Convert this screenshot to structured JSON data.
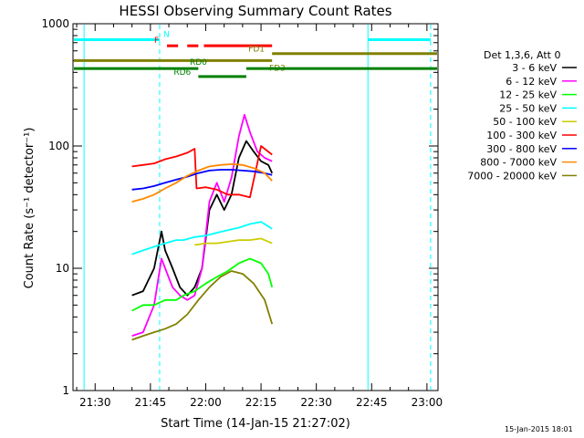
{
  "chart_data": {
    "type": "line",
    "title": "HESSI Observing Summary Count Rates",
    "xlabel": "Start Time (14-Jan-15 21:27:02)",
    "ylabel": "Count Rate (s⁻¹ detector⁻¹)",
    "yscale": "log",
    "ylim": [
      1,
      1000
    ],
    "xlim_minutes": [
      -3,
      96
    ],
    "x_ticks": [
      {
        "m": 3,
        "label": "21:30"
      },
      {
        "m": 18,
        "label": "21:45"
      },
      {
        "m": 33,
        "label": "22:00"
      },
      {
        "m": 48,
        "label": "22:15"
      },
      {
        "m": 63,
        "label": "22:30"
      },
      {
        "m": 78,
        "label": "22:45"
      },
      {
        "m": 93,
        "label": "23:00"
      }
    ],
    "y_ticks": [
      {
        "v": 1,
        "label": "1"
      },
      {
        "v": 10,
        "label": "10"
      },
      {
        "v": 100,
        "label": "100"
      },
      {
        "v": 1000,
        "label": "1000"
      }
    ],
    "legend_title": "Det 1,3,6, Att 0",
    "legend_placement": "right",
    "series": [
      {
        "name": "3 - 6 keV",
        "color": "#000000",
        "points": [
          [
            13,
            6
          ],
          [
            16,
            6.5
          ],
          [
            19,
            10
          ],
          [
            21,
            20
          ],
          [
            22,
            14
          ],
          [
            24,
            10
          ],
          [
            26,
            7
          ],
          [
            28,
            6
          ],
          [
            30,
            7
          ],
          [
            32,
            10
          ],
          [
            34,
            30
          ],
          [
            36,
            40
          ],
          [
            38,
            30
          ],
          [
            40,
            40
          ],
          [
            42,
            80
          ],
          [
            44,
            110
          ],
          [
            46,
            90
          ],
          [
            48,
            75
          ],
          [
            50,
            70
          ],
          [
            51,
            60
          ]
        ]
      },
      {
        "name": "6 - 12 keV",
        "color": "#ff00ff",
        "points": [
          [
            13,
            2.8
          ],
          [
            16,
            3
          ],
          [
            19,
            5
          ],
          [
            21,
            12
          ],
          [
            22,
            10
          ],
          [
            24,
            7
          ],
          [
            26,
            6
          ],
          [
            28,
            5.5
          ],
          [
            30,
            6
          ],
          [
            32,
            10
          ],
          [
            34,
            35
          ],
          [
            36,
            50
          ],
          [
            38,
            35
          ],
          [
            40,
            55
          ],
          [
            42,
            120
          ],
          [
            43.5,
            180
          ],
          [
            45,
            130
          ],
          [
            47,
            90
          ],
          [
            49,
            80
          ],
          [
            51,
            75
          ]
        ]
      },
      {
        "name": "12 - 25 keV",
        "color": "#00ff00",
        "points": [
          [
            13,
            4.5
          ],
          [
            16,
            5
          ],
          [
            19,
            5
          ],
          [
            22,
            5.5
          ],
          [
            25,
            5.5
          ],
          [
            27,
            6
          ],
          [
            30,
            6.5
          ],
          [
            33,
            7.5
          ],
          [
            36,
            8.5
          ],
          [
            39,
            9.5
          ],
          [
            42,
            11
          ],
          [
            45,
            12
          ],
          [
            48,
            11
          ],
          [
            50,
            9
          ],
          [
            51,
            7
          ]
        ]
      },
      {
        "name": "25 - 50 keV",
        "color": "#00ffff",
        "points": [
          [
            13,
            13
          ],
          [
            16,
            14
          ],
          [
            19,
            15
          ],
          [
            22,
            16
          ],
          [
            25,
            17
          ],
          [
            27,
            17
          ],
          [
            30,
            18
          ],
          [
            33,
            18.5
          ],
          [
            36,
            19.5
          ],
          [
            39,
            20.5
          ],
          [
            42,
            21.5
          ],
          [
            45,
            23
          ],
          [
            48,
            24
          ],
          [
            51,
            21
          ]
        ]
      },
      {
        "name": "50 - 100 keV",
        "color": "#cccc00",
        "points": [
          [
            30,
            15.5
          ],
          [
            33,
            16
          ],
          [
            36,
            16
          ],
          [
            39,
            16.5
          ],
          [
            42,
            17
          ],
          [
            45,
            17
          ],
          [
            48,
            17.5
          ],
          [
            51,
            16
          ]
        ]
      },
      {
        "name": "100 - 300 keV",
        "color": "#ff0000",
        "points": [
          [
            13,
            68
          ],
          [
            16,
            70
          ],
          [
            19,
            72
          ],
          [
            22,
            78
          ],
          [
            25,
            82
          ],
          [
            28,
            88
          ],
          [
            30,
            95
          ],
          [
            30.5,
            45
          ],
          [
            33,
            46
          ],
          [
            36,
            44
          ],
          [
            39,
            40
          ],
          [
            42,
            40
          ],
          [
            45,
            38
          ],
          [
            48,
            100
          ],
          [
            51,
            85
          ]
        ]
      },
      {
        "name": "300 - 800 keV",
        "color": "#0000ff",
        "points": [
          [
            13,
            44
          ],
          [
            16,
            45
          ],
          [
            19,
            47
          ],
          [
            22,
            50
          ],
          [
            25,
            53
          ],
          [
            28,
            56
          ],
          [
            31,
            60
          ],
          [
            34,
            63
          ],
          [
            37,
            64
          ],
          [
            40,
            64
          ],
          [
            43,
            63
          ],
          [
            46,
            62
          ],
          [
            49,
            60
          ],
          [
            51,
            58
          ]
        ]
      },
      {
        "name": "800 - 7000 keV",
        "color": "#ff8800",
        "points": [
          [
            13,
            35
          ],
          [
            16,
            37
          ],
          [
            19,
            40
          ],
          [
            22,
            45
          ],
          [
            25,
            50
          ],
          [
            28,
            57
          ],
          [
            31,
            63
          ],
          [
            34,
            68
          ],
          [
            37,
            70
          ],
          [
            40,
            71
          ],
          [
            43,
            70
          ],
          [
            46,
            66
          ],
          [
            49,
            60
          ],
          [
            51,
            52
          ]
        ]
      },
      {
        "name": "7000 - 20000 keV",
        "color": "#808000",
        "points": [
          [
            13,
            2.6
          ],
          [
            16,
            2.8
          ],
          [
            19,
            3
          ],
          [
            22,
            3.2
          ],
          [
            25,
            3.5
          ],
          [
            28,
            4.2
          ],
          [
            31,
            5.5
          ],
          [
            34,
            7
          ],
          [
            37,
            8.5
          ],
          [
            40,
            9.5
          ],
          [
            43,
            9
          ],
          [
            46,
            7.5
          ],
          [
            49,
            5.5
          ],
          [
            51,
            3.5
          ]
        ]
      }
    ],
    "vertical_lines": [
      {
        "m": 0,
        "color": "#00ffff",
        "style": "solid"
      },
      {
        "m": 20.5,
        "color": "#00ffff",
        "style": "dashed"
      },
      {
        "m": 77,
        "color": "#00ffff",
        "style": "solid"
      },
      {
        "m": 94,
        "color": "#00ffff",
        "style": "dashed"
      }
    ],
    "flag_bars": [
      {
        "label": "N",
        "color": "#00ffff",
        "v": 740,
        "segments": [
          [
            -3,
            20.5
          ],
          [
            77,
            94
          ]
        ]
      },
      {
        "label": "F",
        "color": "#ff0000",
        "v": 660,
        "segments": [
          [
            22.5,
            25.5
          ],
          [
            28,
            31
          ],
          [
            32.5,
            51
          ]
        ]
      },
      {
        "label": "FD1",
        "color": "#808000",
        "v": 570,
        "segments": [
          [
            51,
            96
          ]
        ]
      },
      {
        "label": "FD3",
        "color": "#808000",
        "v": 500,
        "segments": [
          [
            -3,
            51
          ]
        ]
      },
      {
        "label": "RD0",
        "color": "#008000",
        "v": 430,
        "segments": [
          [
            -3,
            31
          ],
          [
            44,
            96
          ]
        ]
      },
      {
        "label": "RD6",
        "color": "#008000",
        "v": 370,
        "segments": [
          [
            31,
            44
          ]
        ]
      }
    ]
  },
  "footer": {
    "timestamp": "15-Jan-2015 18:01"
  }
}
